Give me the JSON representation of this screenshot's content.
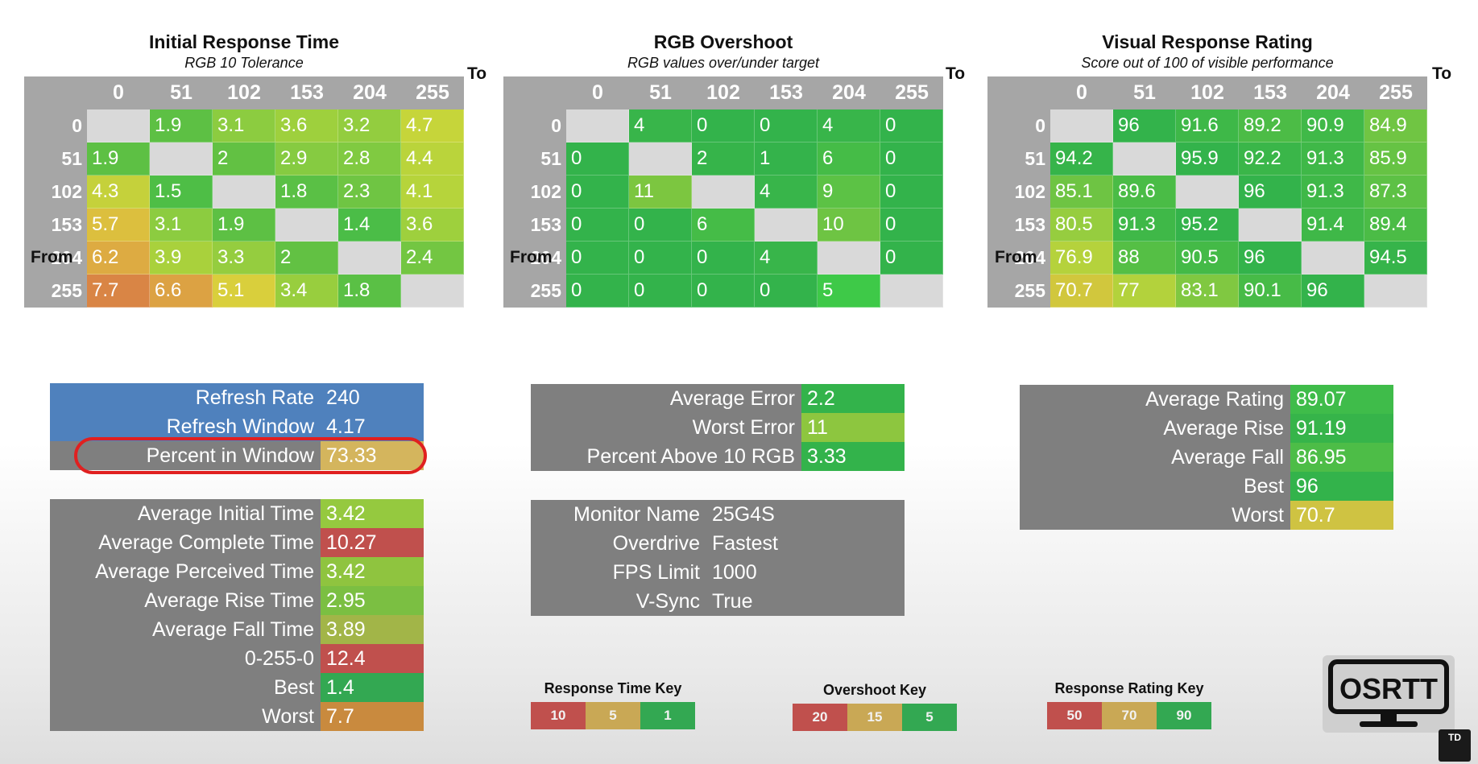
{
  "heatmaps": [
    {
      "title": "Initial Response Time",
      "subtitle": "RGB 10 Tolerance",
      "to_label": "To",
      "from_label": "From",
      "cols": [
        "0",
        "51",
        "102",
        "153",
        "204",
        "255"
      ],
      "rows": [
        {
          "label": "0",
          "values": [
            "",
            "1.9",
            "3.1",
            "3.6",
            "3.2",
            "4.7"
          ],
          "colors": [
            "",
            "#5dc044",
            "#8ccc40",
            "#9ed03d",
            "#93cd3f",
            "#c6d53a"
          ]
        },
        {
          "label": "51",
          "values": [
            "1.9",
            "",
            "2",
            "2.9",
            "2.8",
            "4.4"
          ],
          "colors": [
            "#5dc044",
            "",
            "#62c143",
            "#86cb41",
            "#80ca41",
            "#bad43b"
          ]
        },
        {
          "label": "102",
          "values": [
            "4.3",
            "1.5",
            "",
            "1.8",
            "2.3",
            "4.1"
          ],
          "colors": [
            "#c5d13b",
            "#4ebe46",
            "",
            "#5ac045",
            "#6fc543",
            "#b6d43b"
          ]
        },
        {
          "label": "153",
          "values": [
            "5.7",
            "3.1",
            "1.9",
            "",
            "1.4",
            "3.6"
          ],
          "colors": [
            "#dcbf3e",
            "#8ccc40",
            "#5dc044",
            "",
            "#4bbd47",
            "#9ed03d"
          ]
        },
        {
          "label": "204",
          "values": [
            "6.2",
            "3.9",
            "3.3",
            "2",
            "",
            "2.4"
          ],
          "colors": [
            "#ddab42",
            "#a9d13c",
            "#95cd3f",
            "#62c143",
            "",
            "#73c642"
          ]
        },
        {
          "label": "255",
          "values": [
            "7.7",
            "6.6",
            "5.1",
            "3.4",
            "1.8",
            ""
          ],
          "colors": [
            "#d98545",
            "#dca243",
            "#d9cf3c",
            "#98ce3e",
            "#5ac045",
            ""
          ]
        }
      ]
    },
    {
      "title": "RGB Overshoot",
      "subtitle": "RGB values over/under target",
      "to_label": "To",
      "from_label": "From",
      "cols": [
        "0",
        "51",
        "102",
        "153",
        "204",
        "255"
      ],
      "rows": [
        {
          "label": "0",
          "values": [
            "",
            "4",
            "0",
            "0",
            "4",
            "0"
          ],
          "colors": [
            "",
            "#38b54a",
            "#33b34b",
            "#33b34b",
            "#38b54a",
            "#33b34b"
          ]
        },
        {
          "label": "51",
          "values": [
            "0",
            "",
            "2",
            "1",
            "6",
            "0"
          ],
          "colors": [
            "#33b34b",
            "",
            "#36b44a",
            "#34b34b",
            "#45bc47",
            "#33b34b"
          ]
        },
        {
          "label": "102",
          "values": [
            "0",
            "11",
            "",
            "4",
            "9",
            "0"
          ],
          "colors": [
            "#33b34b",
            "#7cc640",
            "",
            "#38b54a",
            "#5cc245",
            "#33b34b"
          ]
        },
        {
          "label": "153",
          "values": [
            "0",
            "0",
            "6",
            "",
            "10",
            "0"
          ],
          "colors": [
            "#33b34b",
            "#33b34b",
            "#45bc47",
            "",
            "#6ec443",
            "#33b34b"
          ]
        },
        {
          "label": "204",
          "values": [
            "0",
            "0",
            "0",
            "4",
            "",
            "0"
          ],
          "colors": [
            "#33b34b",
            "#33b34b",
            "#33b34b",
            "#38b54a",
            "",
            "#33b34b"
          ]
        },
        {
          "label": "255",
          "values": [
            "0",
            "0",
            "0",
            "0",
            "5",
            ""
          ],
          "colors": [
            "#33b34b",
            "#33b34b",
            "#33b34b",
            "#33b34b",
            "#3ec948",
            ""
          ]
        }
      ]
    },
    {
      "title": "Visual Response Rating",
      "subtitle": "Score out of 100 of visible performance",
      "to_label": "To",
      "from_label": "From",
      "cols": [
        "0",
        "51",
        "102",
        "153",
        "204",
        "255"
      ],
      "rows": [
        {
          "label": "0",
          "values": [
            "",
            "96",
            "91.6",
            "89.2",
            "90.9",
            "84.9"
          ],
          "colors": [
            "",
            "#33b34b",
            "#3eb848",
            "#4cbc46",
            "#40b948",
            "#70c543"
          ]
        },
        {
          "label": "51",
          "values": [
            "94.2",
            "",
            "95.9",
            "92.2",
            "91.3",
            "85.9"
          ],
          "colors": [
            "#36b44a",
            "",
            "#33b34b",
            "#3ab649",
            "#3fb848",
            "#66c344"
          ]
        },
        {
          "label": "102",
          "values": [
            "85.1",
            "89.6",
            "",
            "96",
            "91.3",
            "87.3"
          ],
          "colors": [
            "#6ec443",
            "#4abc46",
            "",
            "#33b34b",
            "#3fb848",
            "#5dc145"
          ]
        },
        {
          "label": "153",
          "values": [
            "80.5",
            "91.3",
            "95.2",
            "",
            "91.4",
            "89.4"
          ],
          "colors": [
            "#96cd3f",
            "#3fb848",
            "#34b34b",
            "",
            "#3fb848",
            "#4bbc46"
          ]
        },
        {
          "label": "204",
          "values": [
            "76.9",
            "88",
            "90.5",
            "96",
            "",
            "94.5"
          ],
          "colors": [
            "#b5d23c",
            "#55bf45",
            "#44ba47",
            "#33b34b",
            "",
            "#36b44a"
          ]
        },
        {
          "label": "255",
          "values": [
            "70.7",
            "77",
            "83.1",
            "90.1",
            "96",
            ""
          ],
          "colors": [
            "#d1c73d",
            "#b3d23c",
            "#80c841",
            "#47bb47",
            "#33b34b",
            ""
          ]
        }
      ]
    }
  ],
  "refresh_panel": {
    "rows": [
      {
        "label": "Refresh Rate",
        "value": "240"
      },
      {
        "label": "Refresh Window",
        "value": "4.17"
      },
      {
        "label": "Percent in Window",
        "value": "73.33",
        "color": "#d4b55d"
      }
    ]
  },
  "timing_panel": {
    "rows": [
      {
        "label": "Average Initial Time",
        "value": "3.42",
        "color": "#95c93f"
      },
      {
        "label": "Average Complete Time",
        "value": "10.27",
        "color": "#c0504d"
      },
      {
        "label": "Average Perceived Time",
        "value": "3.42",
        "color": "#8fc43f"
      },
      {
        "label": "Average Rise Time",
        "value": "2.95",
        "color": "#7bbf42"
      },
      {
        "label": "Average Fall Time",
        "value": "3.89",
        "color": "#a2b548"
      },
      {
        "label": "0-255-0",
        "value": "12.4",
        "color": "#c0504d"
      },
      {
        "label": "Best",
        "value": "1.4",
        "color": "#33a852"
      },
      {
        "label": "Worst",
        "value": "7.7",
        "color": "#c98a3e"
      }
    ]
  },
  "error_panel": {
    "rows": [
      {
        "label": "Average Error",
        "value": "2.2",
        "color": "#33b34b"
      },
      {
        "label": "Worst Error",
        "value": "11",
        "color": "#8dc63f"
      },
      {
        "label": "Percent Above 10 RGB",
        "value": "3.33",
        "color": "#33b34b"
      }
    ]
  },
  "monitor_panel": {
    "rows": [
      {
        "label": "Monitor Name",
        "value": "25G4S"
      },
      {
        "label": "Overdrive",
        "value": "Fastest"
      },
      {
        "label": "FPS Limit",
        "value": "1000"
      },
      {
        "label": "V-Sync",
        "value": "True"
      }
    ]
  },
  "rating_panel": {
    "rows": [
      {
        "label": "Average Rating",
        "value": "89.07",
        "color": "#3fbc4a"
      },
      {
        "label": "Average Rise",
        "value": "91.19",
        "color": "#36b44a"
      },
      {
        "label": "Average Fall",
        "value": "86.95",
        "color": "#4dbd47"
      },
      {
        "label": "Best",
        "value": "96",
        "color": "#33b34b"
      },
      {
        "label": "Worst",
        "value": "70.7",
        "color": "#cfc342"
      }
    ]
  },
  "keys": [
    {
      "title": "Response Time Key",
      "items": [
        {
          "label": "10",
          "color": "#c0504d"
        },
        {
          "label": "5",
          "color": "#c9a855"
        },
        {
          "label": "1",
          "color": "#33a852"
        }
      ]
    },
    {
      "title": "Overshoot Key",
      "items": [
        {
          "label": "20",
          "color": "#c0504d"
        },
        {
          "label": "15",
          "color": "#c9a855"
        },
        {
          "label": "5",
          "color": "#33a852"
        }
      ]
    },
    {
      "title": "Response Rating Key",
      "items": [
        {
          "label": "50",
          "color": "#c0504d"
        },
        {
          "label": "70",
          "color": "#c9a855"
        },
        {
          "label": "90",
          "color": "#33a852"
        }
      ]
    }
  ],
  "logo_text": "OSRTT",
  "badge_text": "TD"
}
